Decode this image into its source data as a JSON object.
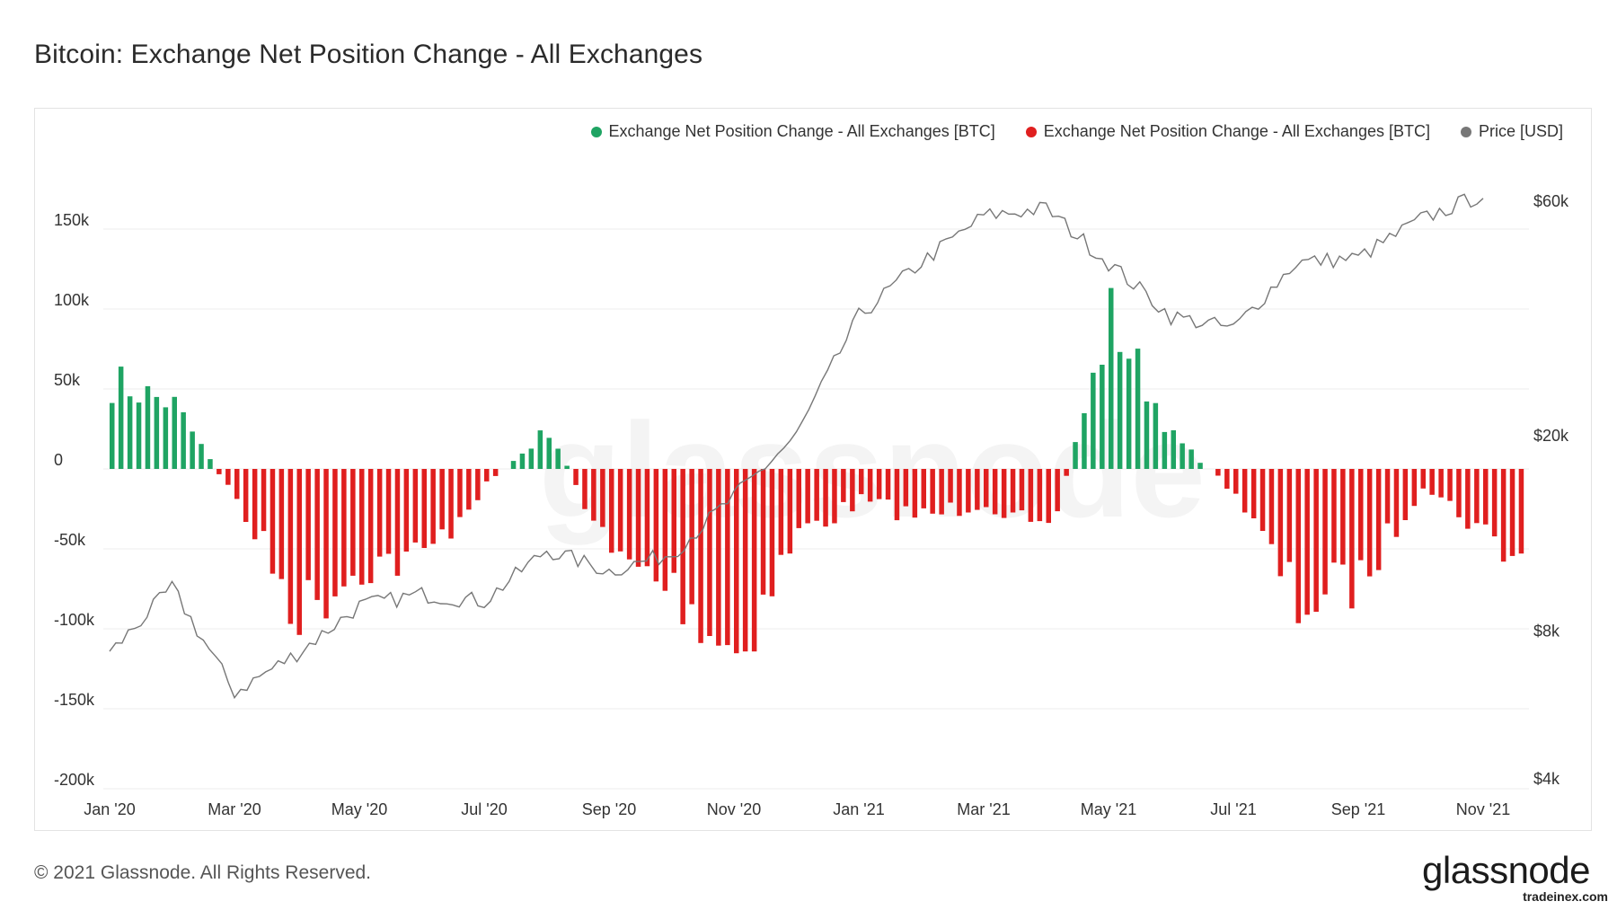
{
  "title": "Bitcoin: Exchange Net Position Change - All Exchanges",
  "footer": {
    "copyright": "© 2021 Glassnode. All Rights Reserved.",
    "logo": "glassnode",
    "watermark": "tradeinex.com"
  },
  "background_watermark": "glassnode",
  "colors": {
    "inflow": "#1fa463",
    "outflow": "#e01f1f",
    "price": "#777777",
    "grid": "#ececec"
  },
  "chart_data": {
    "type": "bar",
    "legend": [
      {
        "label": "Exchange Net Position Change - All Exchanges [BTC]",
        "color": "#1fa463"
      },
      {
        "label": "Exchange Net Position Change - All Exchanges [BTC]",
        "color": "#e01f1f"
      },
      {
        "label": "Price [USD]",
        "color": "#777777"
      }
    ],
    "legend_position": "top-right",
    "x_ticks": [
      "Jan '20",
      "Mar '20",
      "May '20",
      "Jul '20",
      "Sep '20",
      "Nov '20",
      "Jan '21",
      "Mar '21",
      "May '21",
      "Jul '21",
      "Sep '21",
      "Nov '21"
    ],
    "y_left": {
      "label": "",
      "ticks": [
        "150k",
        "100k",
        "50k",
        "0",
        "-50k",
        "-100k",
        "-150k",
        "-200k"
      ],
      "range": [
        -200000,
        175000
      ]
    },
    "y_right": {
      "label": "",
      "ticks": [
        "$60k",
        "$20k",
        "$8k",
        "$4k"
      ],
      "scale": "log",
      "range": [
        4000,
        70000
      ]
    },
    "grid": true,
    "netflow_btc_monthly_approx": [
      {
        "month": "Jan '20",
        "value": 55000
      },
      {
        "month": "Feb '20",
        "value": 40000
      },
      {
        "month": "Mar '20",
        "value": -20000
      },
      {
        "month": "Apr '20",
        "value": -90000
      },
      {
        "month": "May '20",
        "value": -60000
      },
      {
        "month": "Jun '20",
        "value": -55000
      },
      {
        "month": "Jul '20",
        "value": -10000
      },
      {
        "month": "Aug '20",
        "value": 25000
      },
      {
        "month": "Sep '20",
        "value": -55000
      },
      {
        "month": "Oct '20",
        "value": -75000
      },
      {
        "month": "Nov '20",
        "value": -115000
      },
      {
        "month": "Dec '20",
        "value": -40000
      },
      {
        "month": "Jan '21",
        "value": -20000
      },
      {
        "month": "Feb '21",
        "value": -30000
      },
      {
        "month": "Mar '21",
        "value": -20000
      },
      {
        "month": "Apr '21",
        "value": -45000
      },
      {
        "month": "May '21",
        "value": 95000
      },
      {
        "month": "Jun '21",
        "value": 20000
      },
      {
        "month": "Jul '21",
        "value": -15000
      },
      {
        "month": "Aug '21",
        "value": -85000
      },
      {
        "month": "Sep '21",
        "value": -70000
      },
      {
        "month": "Oct '21",
        "value": -10000
      },
      {
        "month": "Nov '21",
        "value": -40000
      }
    ],
    "price_usd_monthly_approx": [
      {
        "month": "Jan '20",
        "value": 7200
      },
      {
        "month": "Feb '20",
        "value": 9800
      },
      {
        "month": "Mar '20",
        "value": 6000
      },
      {
        "month": "Apr '20",
        "value": 7200
      },
      {
        "month": "May '20",
        "value": 9000
      },
      {
        "month": "Jun '20",
        "value": 9500
      },
      {
        "month": "Jul '20",
        "value": 9200
      },
      {
        "month": "Aug '20",
        "value": 11700
      },
      {
        "month": "Sep '20",
        "value": 10600
      },
      {
        "month": "Oct '20",
        "value": 11500
      },
      {
        "month": "Nov '20",
        "value": 15000
      },
      {
        "month": "Dec '20",
        "value": 20000
      },
      {
        "month": "Jan '21",
        "value": 35000
      },
      {
        "month": "Feb '21",
        "value": 45000
      },
      {
        "month": "Mar '21",
        "value": 56000
      },
      {
        "month": "Apr '21",
        "value": 58000
      },
      {
        "month": "May '21",
        "value": 45000
      },
      {
        "month": "Jun '21",
        "value": 35000
      },
      {
        "month": "Jul '21",
        "value": 33000
      },
      {
        "month": "Aug '21",
        "value": 45000
      },
      {
        "month": "Sep '21",
        "value": 46000
      },
      {
        "month": "Oct '21",
        "value": 55000
      },
      {
        "month": "Nov '21",
        "value": 62000
      }
    ]
  }
}
